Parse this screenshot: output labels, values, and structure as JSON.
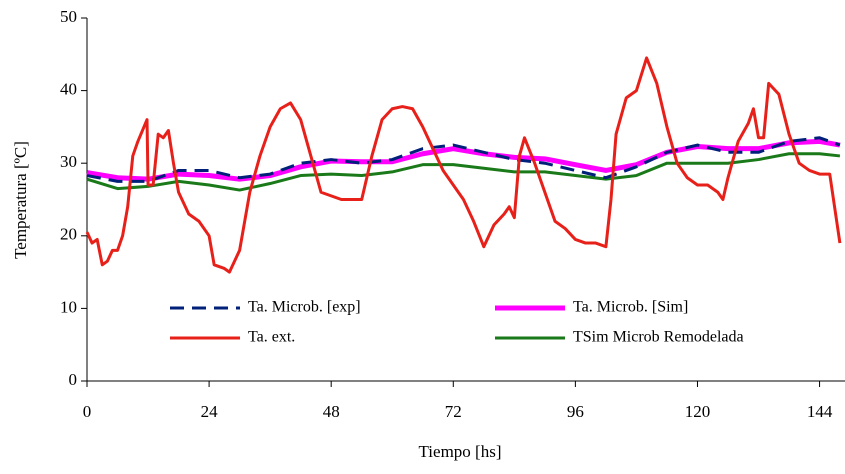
{
  "chart_data": {
    "type": "line",
    "x_label": "Tiempo [hs]",
    "y_label": "Temperatura [ºC]",
    "xlim": [
      0,
      149
    ],
    "ylim": [
      0,
      50
    ],
    "xticks": [
      0,
      24,
      48,
      72,
      96,
      120,
      144
    ],
    "yticks": [
      0,
      10,
      20,
      30,
      40,
      50
    ],
    "series": [
      {
        "name": "Ta. Microb. [exp]",
        "color": "#00207a",
        "dash": "dashed",
        "width": 3,
        "x": [
          0,
          6,
          12,
          18,
          24,
          30,
          36,
          42,
          48,
          54,
          60,
          66,
          72,
          78,
          84,
          90,
          96,
          102,
          108,
          114,
          120,
          126,
          132,
          138,
          144,
          148
        ],
        "values": [
          28.3,
          27.5,
          27.5,
          29,
          29,
          28,
          28.5,
          30,
          30.5,
          30,
          30.5,
          32,
          32.5,
          31.5,
          30.5,
          30,
          29,
          28,
          29.5,
          31.5,
          32.5,
          31.5,
          31.5,
          33,
          33.5,
          32.5
        ]
      },
      {
        "name": "Ta. Microb. [Sim]",
        "color": "#ff00ff",
        "dash": "solid",
        "width": 5,
        "x": [
          0,
          6,
          12,
          18,
          24,
          30,
          36,
          42,
          48,
          54,
          60,
          66,
          72,
          78,
          84,
          90,
          96,
          102,
          108,
          114,
          120,
          126,
          132,
          138,
          144,
          148
        ],
        "values": [
          28.7,
          28,
          27.8,
          28.5,
          28.3,
          27.8,
          28.3,
          29.5,
          30.3,
          30.2,
          30.2,
          31.3,
          32,
          31.3,
          30.8,
          30.6,
          29.8,
          29,
          29.8,
          31.5,
          32.3,
          32,
          32,
          32.8,
          33,
          32.5
        ]
      },
      {
        "name": "Ta. ext.",
        "color": "#e8201a",
        "dash": "solid",
        "width": 3,
        "x": [
          0,
          1,
          2,
          3,
          4,
          5,
          6,
          7,
          8,
          9,
          10,
          11.8,
          12,
          13,
          14,
          15,
          16,
          17,
          18,
          20,
          22,
          24,
          25,
          27,
          28,
          30,
          32,
          34,
          36,
          38,
          40,
          42,
          44,
          46,
          48,
          50,
          52,
          54,
          56,
          58,
          60,
          62,
          64,
          66,
          68,
          70,
          72,
          74,
          76,
          78,
          80,
          82,
          83,
          84,
          85,
          86,
          88,
          90,
          92,
          94,
          96,
          98,
          100,
          102,
          103,
          104,
          106,
          108,
          110,
          112,
          114,
          116,
          118,
          120,
          122,
          124,
          125,
          126,
          128,
          130,
          131,
          132,
          133,
          134,
          136,
          138,
          140,
          142,
          144,
          146,
          148
        ],
        "values": [
          20.5,
          19,
          19.5,
          16,
          16.5,
          18,
          18,
          20,
          24,
          31,
          33,
          36,
          27,
          27,
          34,
          33.5,
          34.5,
          30,
          26,
          23,
          22,
          20,
          16,
          15.5,
          15,
          18,
          26,
          31,
          35,
          37.5,
          38.3,
          36,
          31,
          26,
          25.5,
          25,
          25,
          25,
          31,
          36,
          37.5,
          37.8,
          37.5,
          35,
          32,
          29,
          27,
          25,
          22,
          18.5,
          21.5,
          23,
          24,
          22.5,
          31,
          33.5,
          30,
          26,
          22,
          21,
          19.5,
          19,
          19,
          18.5,
          25,
          34,
          39,
          40,
          44.5,
          41,
          35,
          30,
          28,
          27,
          27,
          26,
          25,
          28,
          33,
          35.5,
          37.5,
          33.5,
          33.5,
          41,
          39.5,
          34,
          30,
          29,
          28.5,
          28.5,
          19
        ]
      },
      {
        "name": "TSim Microb Remodelada",
        "color": "#1a7a1a",
        "dash": "solid",
        "width": 3,
        "x": [
          0,
          6,
          12,
          18,
          24,
          30,
          36,
          42,
          48,
          54,
          60,
          66,
          72,
          78,
          84,
          90,
          96,
          102,
          108,
          114,
          120,
          126,
          132,
          138,
          144,
          148
        ],
        "values": [
          27.8,
          26.5,
          26.8,
          27.5,
          27,
          26.3,
          27.2,
          28.3,
          28.5,
          28.3,
          28.8,
          29.8,
          29.8,
          29.3,
          28.8,
          28.8,
          28.3,
          27.8,
          28.3,
          30,
          30,
          30,
          30.5,
          31.3,
          31.3,
          31
        ]
      }
    ]
  }
}
